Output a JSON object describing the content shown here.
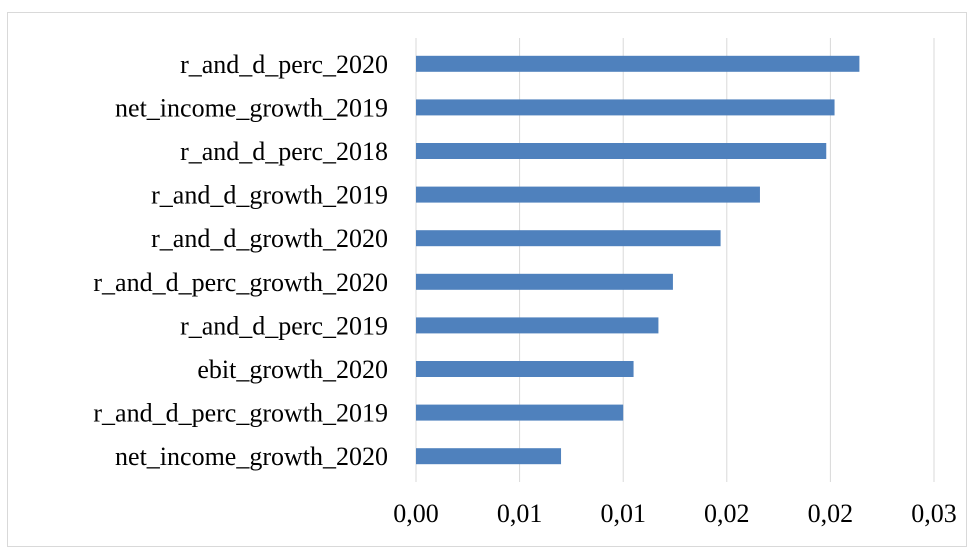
{
  "chart_data": {
    "type": "bar",
    "orientation": "horizontal",
    "categories": [
      "r_and_d_perc_2020",
      "net_income_growth_2019",
      "r_and_d_perc_2018",
      "r_and_d_growth_2019",
      "r_and_d_growth_2020",
      "r_and_d_perc_growth_2020",
      "r_and_d_perc_2019",
      "ebit_growth_2020",
      "r_and_d_perc_growth_2019",
      "net_income_growth_2020"
    ],
    "values": [
      0.0214,
      0.0202,
      0.0198,
      0.0166,
      0.0147,
      0.0124,
      0.0117,
      0.0105,
      0.01,
      0.007
    ],
    "xlim": [
      0,
      0.025
    ],
    "x_ticks": [
      0,
      0.005,
      0.01,
      0.015,
      0.02,
      0.025
    ],
    "x_tick_labels": [
      "0,00",
      "0,01",
      "0,01",
      "0,02",
      "0,02",
      "0,03"
    ],
    "title": "",
    "xlabel": "",
    "ylabel": "",
    "grid": "vertical",
    "legend": "none",
    "bar_color": "#4f81bd"
  }
}
